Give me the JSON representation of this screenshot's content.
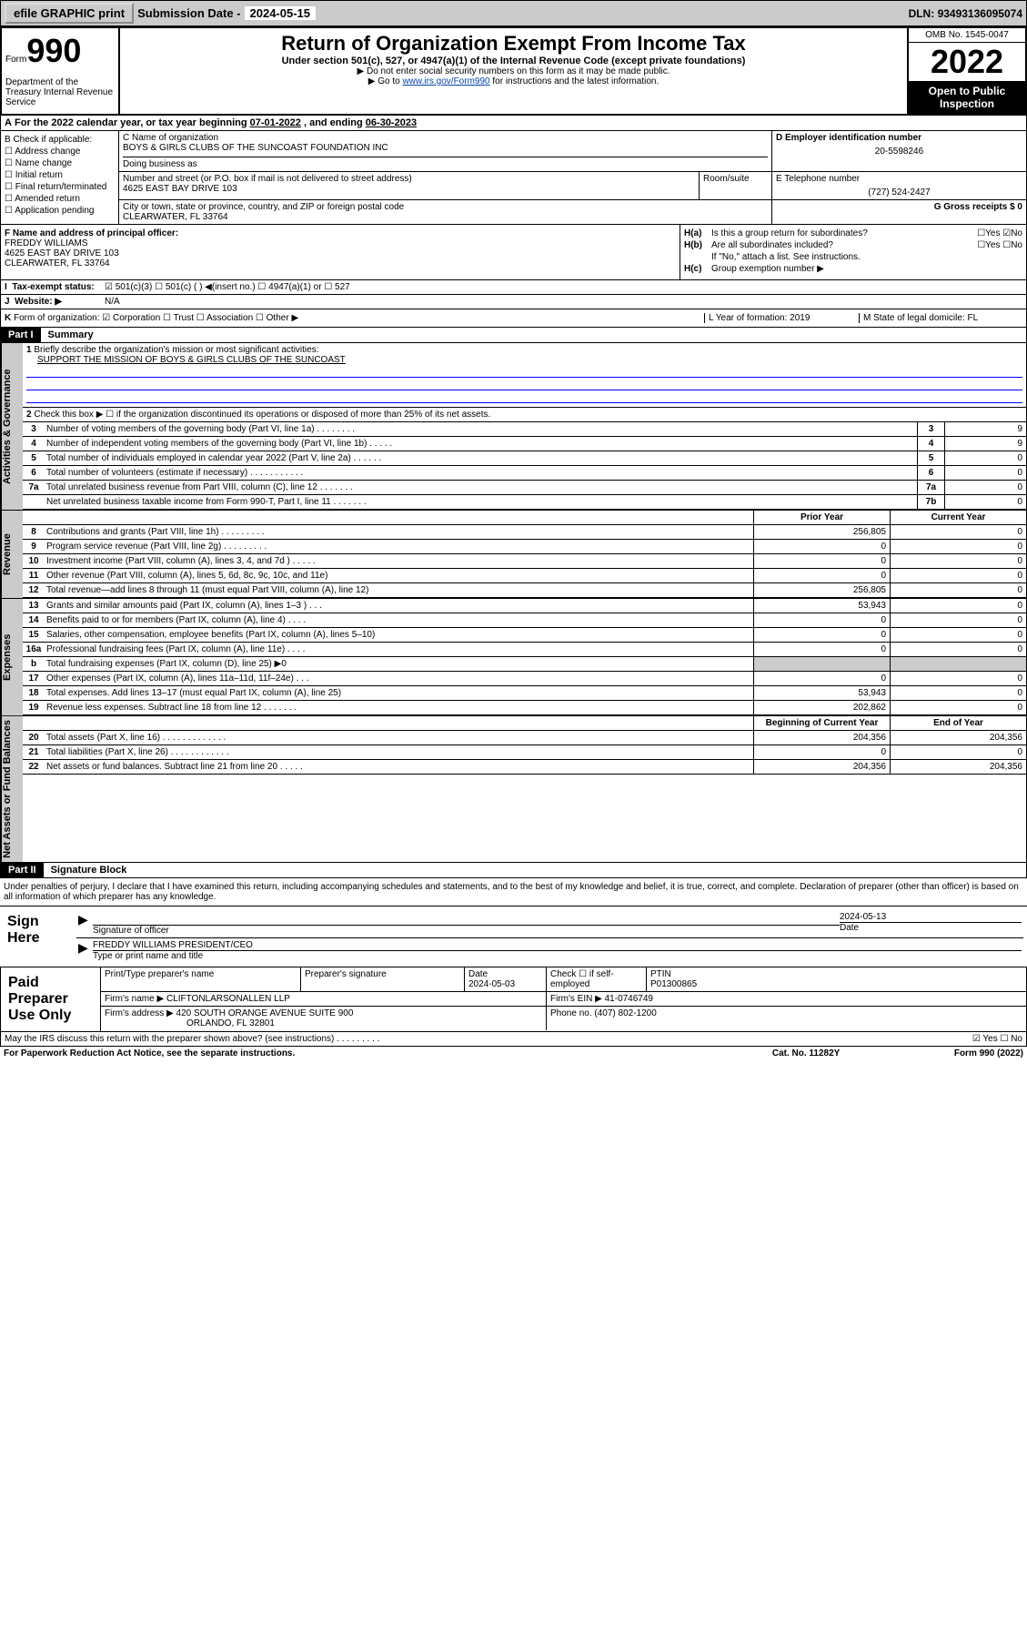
{
  "topbar": {
    "efile": "efile GRAPHIC print",
    "submission_label": "Submission Date - ",
    "submission_date": "2024-05-15",
    "dln_label": "DLN: ",
    "dln": "93493136095074"
  },
  "header": {
    "form_word": "Form",
    "form_number": "990",
    "dept": "Department of the Treasury Internal Revenue Service",
    "title": "Return of Organization Exempt From Income Tax",
    "subtitle": "Under section 501(c), 527, or 4947(a)(1) of the Internal Revenue Code (except private foundations)",
    "note1": "▶ Do not enter social security numbers on this form as it may be made public.",
    "note2_pre": "▶ Go to ",
    "note2_link": "www.irs.gov/Form990",
    "note2_post": " for instructions and the latest information.",
    "omb": "OMB No. 1545-0047",
    "year": "2022",
    "inspection": "Open to Public Inspection"
  },
  "row_a": {
    "label_a": "A",
    "text": "For the 2022 calendar year, or tax year beginning ",
    "begin": "07-01-2022",
    "mid": " , and ending ",
    "end": "06-30-2023"
  },
  "col_b": {
    "label": "B Check if applicable:",
    "items": [
      "☐ Address change",
      "☐ Name change",
      "☐ Initial return",
      "☐ Final return/terminated",
      "☐ Amended return",
      "☐ Application pending"
    ]
  },
  "name_block": {
    "c_label": "C Name of organization",
    "c_name": "BOYS & GIRLS CLUBS OF THE SUNCOAST FOUNDATION INC",
    "dba_label": "Doing business as",
    "addr_label": "Number and street (or P.O. box if mail is not delivered to street address)",
    "addr": "4625 EAST BAY DRIVE 103",
    "room_label": "Room/suite",
    "city_label": "City or town, state or province, country, and ZIP or foreign postal code",
    "city": "CLEARWATER, FL  33764",
    "d_label": "D Employer identification number",
    "d_ein": "20-5598246",
    "e_label": "E Telephone number",
    "e_phone": "(727) 524-2427",
    "g_label": "G Gross receipts $ 0"
  },
  "col_f": {
    "label": "F  Name and address of principal officer:",
    "name": "FREDDY WILLIAMS",
    "addr1": "4625 EAST BAY DRIVE 103",
    "addr2": "CLEARWATER, FL  33764"
  },
  "col_h": {
    "ha_label": "H(a)",
    "ha_text": "Is this a group return for subordinates?",
    "ha_ans": "☐Yes ☑No",
    "hb_label": "H(b)",
    "hb_text": "Are all subordinates included?",
    "hb_ans": "☐Yes ☐No",
    "hb_note": "If \"No,\" attach a list. See instructions.",
    "hc_label": "H(c)",
    "hc_text": "Group exemption number ▶"
  },
  "row_i": {
    "label": "I",
    "text": "Tax-exempt status:",
    "opts": "☑ 501(c)(3)    ☐ 501(c) (  ) ◀(insert no.)    ☐ 4947(a)(1) or  ☐ 527"
  },
  "row_j": {
    "label": "J",
    "text": "Website: ▶",
    "val": "N/A"
  },
  "row_k": {
    "label": "K",
    "text": "Form of organization:  ☑ Corporation  ☐ Trust  ☐ Association  ☐ Other ▶",
    "l_text": "L Year of formation: 2019",
    "m_text": "M State of legal domicile: FL"
  },
  "part1": {
    "header": "Part I",
    "title": "Summary"
  },
  "gov": {
    "tab": "Activities & Governance",
    "l1_label": "1",
    "l1_text": "Briefly describe the organization's mission or most significant activities:",
    "l1_mission": "SUPPORT THE MISSION OF BOYS & GIRLS CLUBS OF THE SUNCOAST",
    "l2_label": "2",
    "l2_text": "Check this box ▶ ☐  if the organization discontinued its operations or disposed of more than 25% of its net assets.",
    "lines": [
      {
        "n": "3",
        "t": "Number of voting members of the governing body (Part VI, line 1a)  .   .   .   .   .   .   .   .",
        "box": "3",
        "val": "9"
      },
      {
        "n": "4",
        "t": "Number of independent voting members of the governing body (Part VI, line 1b)  .   .   .   .   .",
        "box": "4",
        "val": "9"
      },
      {
        "n": "5",
        "t": "Total number of individuals employed in calendar year 2022 (Part V, line 2a)  .   .   .   .   .   .",
        "box": "5",
        "val": "0"
      },
      {
        "n": "6",
        "t": "Total number of volunteers (estimate if necessary)  .   .   .   .   .   .   .   .   .   .   .",
        "box": "6",
        "val": "0"
      },
      {
        "n": "7a",
        "t": "Total unrelated business revenue from Part VIII, column (C), line 12  .   .   .   .   .   .   .",
        "box": "7a",
        "val": "0"
      },
      {
        "n": "",
        "t": "Net unrelated business taxable income from Form 990-T, Part I, line 11  .   .   .   .   .   .   .",
        "box": "7b",
        "val": "0"
      }
    ]
  },
  "rev": {
    "tab": "Revenue",
    "head_prior": "Prior Year",
    "head_current": "Current Year",
    "lines": [
      {
        "n": "8",
        "t": "Contributions and grants (Part VIII, line 1h)  .   .   .   .   .   .   .   .   .",
        "p": "256,805",
        "c": "0"
      },
      {
        "n": "9",
        "t": "Program service revenue (Part VIII, line 2g)  .   .   .   .   .   .   .   .   .",
        "p": "0",
        "c": "0"
      },
      {
        "n": "10",
        "t": "Investment income (Part VIII, column (A), lines 3, 4, and 7d )  .   .   .   .   .",
        "p": "0",
        "c": "0"
      },
      {
        "n": "11",
        "t": "Other revenue (Part VIII, column (A), lines 5, 6d, 8c, 9c, 10c, and 11e)",
        "p": "0",
        "c": "0"
      },
      {
        "n": "12",
        "t": "Total revenue—add lines 8 through 11 (must equal Part VIII, column (A), line 12)",
        "p": "256,805",
        "c": "0"
      }
    ]
  },
  "exp": {
    "tab": "Expenses",
    "lines": [
      {
        "n": "13",
        "t": "Grants and similar amounts paid (Part IX, column (A), lines 1–3 )  .   .   .",
        "p": "53,943",
        "c": "0"
      },
      {
        "n": "14",
        "t": "Benefits paid to or for members (Part IX, column (A), line 4)  .   .   .   .",
        "p": "0",
        "c": "0"
      },
      {
        "n": "15",
        "t": "Salaries, other compensation, employee benefits (Part IX, column (A), lines 5–10)",
        "p": "0",
        "c": "0"
      },
      {
        "n": "16a",
        "t": "Professional fundraising fees (Part IX, column (A), line 11e)  .   .   .   .",
        "p": "0",
        "c": "0"
      },
      {
        "n": "b",
        "t": "Total fundraising expenses (Part IX, column (D), line 25) ▶0",
        "p": "",
        "c": "",
        "shade": true
      },
      {
        "n": "17",
        "t": "Other expenses (Part IX, column (A), lines 11a–11d, 11f–24e)  .   .   .",
        "p": "0",
        "c": "0"
      },
      {
        "n": "18",
        "t": "Total expenses. Add lines 13–17 (must equal Part IX, column (A), line 25)",
        "p": "53,943",
        "c": "0"
      },
      {
        "n": "19",
        "t": "Revenue less expenses. Subtract line 18 from line 12  .   .   .   .   .   .   .",
        "p": "202,862",
        "c": "0"
      }
    ]
  },
  "net": {
    "tab": "Net Assets or Fund Balances",
    "head_begin": "Beginning of Current Year",
    "head_end": "End of Year",
    "lines": [
      {
        "n": "20",
        "t": "Total assets (Part X, line 16)  .   .   .   .   .   .   .   .   .   .   .   .   .",
        "p": "204,356",
        "c": "204,356"
      },
      {
        "n": "21",
        "t": "Total liabilities (Part X, line 26)  .   .   .   .   .   .   .   .   .   .   .   .",
        "p": "0",
        "c": "0"
      },
      {
        "n": "22",
        "t": "Net assets or fund balances. Subtract line 21 from line 20  .   .   .   .   .",
        "p": "204,356",
        "c": "204,356"
      }
    ]
  },
  "part2": {
    "header": "Part II",
    "title": "Signature Block"
  },
  "declare": "Under penalties of perjury, I declare that I have examined this return, including accompanying schedules and statements, and to the best of my knowledge and belief, it is true, correct, and complete. Declaration of preparer (other than officer) is based on all information of which preparer has any knowledge.",
  "sign": {
    "label": "Sign Here",
    "sig_label": "Signature of officer",
    "date_label": "Date",
    "date": "2024-05-13",
    "name": "FREDDY WILLIAMS  PRESIDENT/CEO",
    "name_label": "Type or print name and title"
  },
  "prep": {
    "label": "Paid Preparer Use Only",
    "h_name": "Print/Type preparer's name",
    "h_sig": "Preparer's signature",
    "h_date": "Date",
    "date": "2024-05-03",
    "h_check": "Check ☐ if self-employed",
    "h_ptin": "PTIN",
    "ptin": "P01300865",
    "firm_label": "Firm's name    ▶",
    "firm": "CLIFTONLARSONALLEN LLP",
    "ein_label": "Firm's EIN ▶",
    "ein": "41-0746749",
    "addr_label": "Firm's address ▶",
    "addr1": "420 SOUTH ORANGE AVENUE SUITE 900",
    "addr2": "ORLANDO, FL  32801",
    "phone_label": "Phone no.",
    "phone": "(407) 802-1200"
  },
  "may": {
    "text": "May the IRS discuss this return with the preparer shown above? (see instructions)  .   .   .   .   .   .   .   .   .",
    "ans": "☑ Yes  ☐ No"
  },
  "footer": {
    "left": "For Paperwork Reduction Act Notice, see the separate instructions.",
    "mid": "Cat. No. 11282Y",
    "right": "Form 990 (2022)"
  }
}
